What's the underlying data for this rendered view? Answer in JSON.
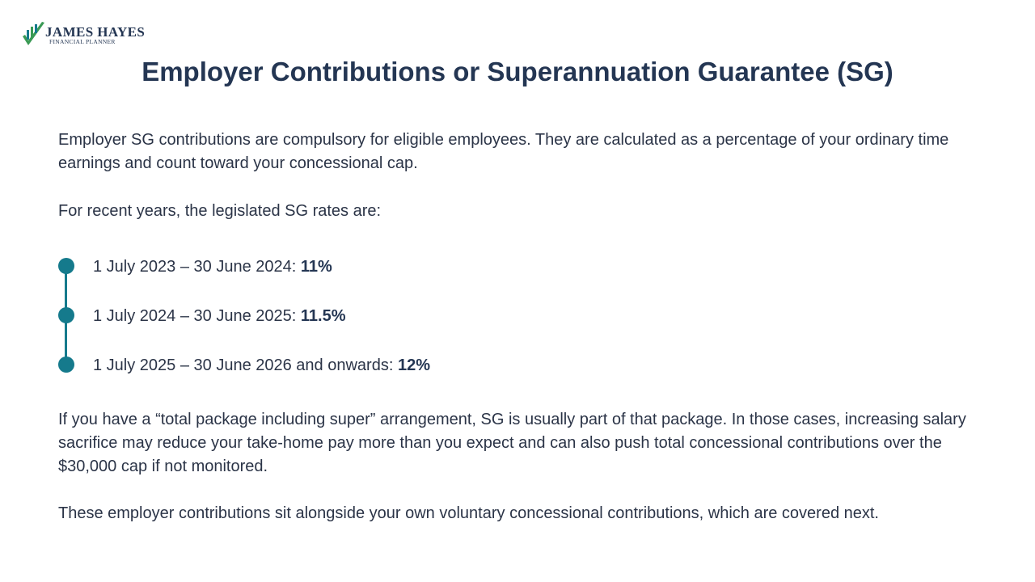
{
  "logo": {
    "name": "JAMES HAYES",
    "subtitle": "FINANCIAL PLANNER",
    "colors": {
      "green": "#3a9a55",
      "teal": "#157a8c",
      "navy": "#243653"
    }
  },
  "title": "Employer Contributions or Superannuation Guarantee (SG)",
  "paragraphs": {
    "intro": "Employer SG contributions are compulsory for eligible employees. They are calculated as a percentage of your ordinary time earnings and count toward your concessional cap.",
    "rates_lead": "For recent years, the legislated SG rates are:",
    "package_note": "If you have a “total package including super” arrangement, SG is usually part of that package. In those cases, increasing salary sacrifice may reduce your take-home pay more than you expect and can also push total concessional contributions over the $30,000 cap if not monitored.",
    "closing": "These employer contributions sit alongside your own voluntary concessional contributions, which are covered next."
  },
  "timeline": {
    "accent_color": "#157a8c",
    "items": [
      {
        "period": "1 July 2023 – 30 June 2024: ",
        "rate": "11%"
      },
      {
        "period": "1 July 2024 – 30 June 2025: ",
        "rate": "11.5%"
      },
      {
        "period": "1 July 2025 – 30 June 2026 and onwards: ",
        "rate": "12%"
      }
    ]
  }
}
